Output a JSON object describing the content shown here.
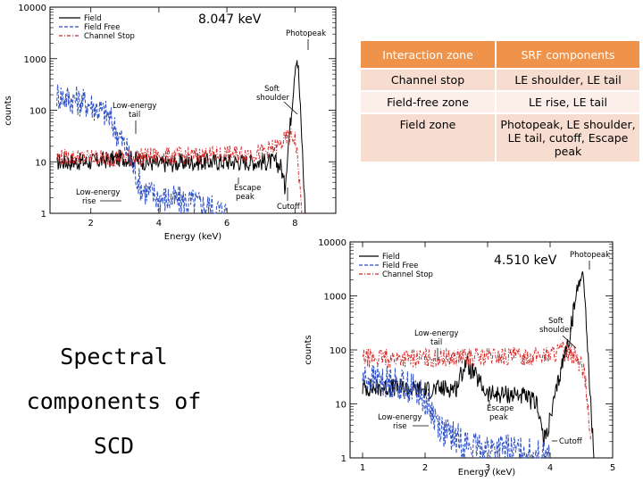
{
  "slide_title": [
    "Spectral",
    "components of",
    "SCD"
  ],
  "table": {
    "headers": [
      "Interaction zone",
      "SRF components"
    ],
    "rows": [
      [
        "Channel stop",
        "LE shoulder, LE tail"
      ],
      [
        "Field-free zone",
        "LE rise, LE tail"
      ],
      [
        "Field zone",
        "Photopeak, LE shoulder,  LE tail, cutoff, Escape peak"
      ]
    ]
  },
  "chart_data": [
    {
      "type": "line",
      "title": "8.047 keV",
      "xlabel": "Energy (keV)",
      "ylabel": "counts",
      "xlim": [
        0.8,
        9.2
      ],
      "ylim": [
        1,
        10000
      ],
      "yscale": "log",
      "xticks": [
        "2",
        "4",
        "6",
        "8"
      ],
      "yticks": [
        "1",
        "10",
        "100",
        "1000",
        "10000"
      ],
      "legend": [
        "Field",
        "Field Free",
        "Channel Stop"
      ],
      "annotations": [
        "Photopeak",
        "Soft shoulder",
        "Low-energy tail",
        "Low-energy rise",
        "Escape peak",
        "Cutoff"
      ],
      "series": [
        {
          "name": "Field",
          "color": "#000000",
          "style": "solid",
          "x": [
            1.0,
            2.0,
            3.0,
            4.0,
            5.0,
            6.0,
            7.0,
            7.4,
            7.6,
            7.7,
            7.8,
            7.9,
            8.0,
            8.05,
            8.1,
            8.2,
            8.3
          ],
          "y": [
            10,
            10,
            12,
            9,
            10,
            10,
            10,
            10,
            8,
            3,
            20,
            100,
            700,
            1200,
            600,
            30,
            1
          ]
        },
        {
          "name": "Field Free",
          "color": "#2f4fc4",
          "style": "dashed",
          "x": [
            1.0,
            1.5,
            2.0,
            2.5,
            3.0,
            3.5,
            4.0,
            4.5,
            5.0,
            5.5,
            6.0
          ],
          "y": [
            200,
            160,
            130,
            80,
            20,
            3,
            2,
            1.8,
            1.6,
            1.3,
            1
          ]
        },
        {
          "name": "Channel Stop",
          "color": "#d42a2a",
          "style": "dashdot",
          "x": [
            1.0,
            2.0,
            3.0,
            4.0,
            5.0,
            6.0,
            7.0,
            7.5,
            7.8,
            8.0,
            8.1,
            8.2
          ],
          "y": [
            12,
            12,
            12,
            13,
            13,
            14,
            15,
            20,
            30,
            30,
            8,
            1
          ]
        }
      ]
    },
    {
      "type": "line",
      "title": "4.510 keV",
      "xlabel": "Energy (keV)",
      "ylabel": "counts",
      "xlim": [
        0.8,
        5.0
      ],
      "ylim": [
        1,
        10000
      ],
      "yscale": "log",
      "xticks": [
        "1",
        "2",
        "3",
        "4",
        "5"
      ],
      "yticks": [
        "1",
        "10",
        "100",
        "1000",
        "10000"
      ],
      "legend": [
        "Field",
        "Field Free",
        "Channel Stop"
      ],
      "annotations": [
        "Photopeak",
        "Soft shoulder",
        "Low-energy tail",
        "Low-energy rise",
        "Escape peak",
        "Cutoff"
      ],
      "series": [
        {
          "name": "Field",
          "color": "#000000",
          "style": "solid",
          "x": [
            1.0,
            1.5,
            2.0,
            2.5,
            2.65,
            3.0,
            3.5,
            3.8,
            3.9,
            4.0,
            4.2,
            4.3,
            4.4,
            4.5,
            4.55,
            4.6,
            4.7
          ],
          "y": [
            20,
            20,
            18,
            20,
            60,
            15,
            15,
            10,
            2,
            5,
            60,
            150,
            800,
            3000,
            1500,
            100,
            1
          ]
        },
        {
          "name": "Field Free",
          "color": "#2f4fc4",
          "style": "dashed",
          "x": [
            1.0,
            1.5,
            1.8,
            2.0,
            2.3,
            2.6,
            2.8,
            3.0,
            3.5,
            4.0
          ],
          "y": [
            30,
            25,
            20,
            12,
            3,
            2,
            1.5,
            1.5,
            1.3,
            1
          ]
        },
        {
          "name": "Channel Stop",
          "color": "#d42a2a",
          "style": "dashdot",
          "x": [
            1.0,
            2.0,
            3.0,
            3.5,
            4.0,
            4.2,
            4.4,
            4.55,
            4.65
          ],
          "y": [
            70,
            70,
            75,
            75,
            80,
            100,
            80,
            40,
            2
          ]
        }
      ]
    }
  ]
}
